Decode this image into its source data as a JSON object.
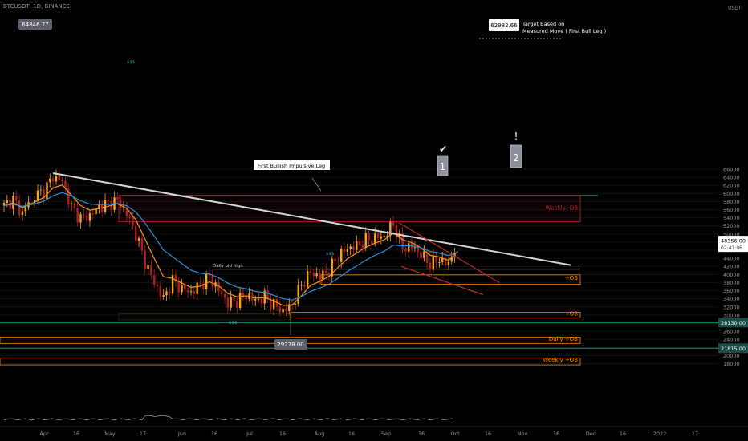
{
  "header": {
    "symbol": "BTCUSDT, 1D, BINANCE"
  },
  "colors": {
    "up": "#f5a623",
    "down": "#b51d1d",
    "ema_fast": "#f7931a",
    "ema_slow": "#2f8fd8",
    "trend": "#d6d6d6",
    "ob_red": "#c0262c",
    "ob_orange": "#ff8c00",
    "support": "#26a69a"
  },
  "chart_data": {
    "type": "candlestick",
    "title": "BTCUSDT, 1D, BINANCE",
    "currency": "USDT",
    "ylim": [
      17000,
      66500
    ],
    "y_ticks": [
      18000,
      20000,
      22000,
      24000,
      26000,
      28000,
      30000,
      32000,
      34000,
      36000,
      38000,
      40000,
      42000,
      44000,
      46000,
      48000,
      50000,
      52000,
      54000,
      56000,
      58000,
      60000,
      62000,
      64000,
      66000
    ],
    "x_ticks": [
      "Apr",
      "16",
      "May",
      "17",
      "Jun",
      "16",
      "Jul",
      "16",
      "Aug",
      "16",
      "Sep",
      "16",
      "Oct",
      "16",
      "Nov",
      "16",
      "Dec",
      "16",
      "2022",
      "17"
    ],
    "candles_close_path": [
      {
        "t": 0,
        "v": 57000
      },
      {
        "t": 3,
        "v": 58500
      },
      {
        "t": 6,
        "v": 55000
      },
      {
        "t": 10,
        "v": 59500
      },
      {
        "t": 13,
        "v": 60500
      },
      {
        "t": 16,
        "v": 64200
      },
      {
        "t": 19,
        "v": 63000
      },
      {
        "t": 22,
        "v": 56500
      },
      {
        "t": 25,
        "v": 53800
      },
      {
        "t": 28,
        "v": 54500
      },
      {
        "t": 31,
        "v": 56800
      },
      {
        "t": 34,
        "v": 57500
      },
      {
        "t": 37,
        "v": 58200
      },
      {
        "t": 40,
        "v": 55000
      },
      {
        "t": 43,
        "v": 50000
      },
      {
        "t": 46,
        "v": 43000
      },
      {
        "t": 49,
        "v": 38000
      },
      {
        "t": 52,
        "v": 34000
      },
      {
        "t": 55,
        "v": 38500
      },
      {
        "t": 58,
        "v": 36500
      },
      {
        "t": 61,
        "v": 35500
      },
      {
        "t": 64,
        "v": 37500
      },
      {
        "t": 67,
        "v": 39500
      },
      {
        "t": 70,
        "v": 36000
      },
      {
        "t": 73,
        "v": 33000
      },
      {
        "t": 76,
        "v": 33500
      },
      {
        "t": 79,
        "v": 35000
      },
      {
        "t": 82,
        "v": 33500
      },
      {
        "t": 85,
        "v": 34500
      },
      {
        "t": 88,
        "v": 32500
      },
      {
        "t": 91,
        "v": 31000
      },
      {
        "t": 94,
        "v": 32500
      },
      {
        "t": 97,
        "v": 37500
      },
      {
        "t": 100,
        "v": 40500
      },
      {
        "t": 103,
        "v": 39500
      },
      {
        "t": 106,
        "v": 41000
      },
      {
        "t": 109,
        "v": 44500
      },
      {
        "t": 112,
        "v": 46500
      },
      {
        "t": 115,
        "v": 47000
      },
      {
        "t": 118,
        "v": 48500
      },
      {
        "t": 121,
        "v": 49000
      },
      {
        "t": 124,
        "v": 49500
      },
      {
        "t": 127,
        "v": 52500
      },
      {
        "t": 130,
        "v": 46500
      },
      {
        "t": 133,
        "v": 47000
      },
      {
        "t": 136,
        "v": 45000
      },
      {
        "t": 139,
        "v": 42500
      },
      {
        "t": 142,
        "v": 43800
      },
      {
        "t": 145,
        "v": 42500
      },
      {
        "t": 148,
        "v": 48400
      }
    ],
    "current_price": "48356.00",
    "countdown": "02:41:06",
    "trendline": {
      "from": {
        "t": 16,
        "v": 65000
      },
      "to": {
        "t": 185,
        "v": 42300
      }
    },
    "annotations": {
      "high_label": "64846.77",
      "low_label": "29278.00",
      "target_value": "62982.66",
      "target_text_1": "Target Based on",
      "target_text_2": "Measured Move ( First Bull Leg )",
      "impulse_label": "First Bullish Impulsive Leg",
      "daily_old_high": "Daily old high",
      "weekly_ob_top": "Weekly -OB",
      "ob_plus_1": "+OB",
      "ob_plus_2": "+OB",
      "daily_ob": "Daily +OB",
      "weekly_ob_bottom": "Weekly +OB",
      "level_28130": "28130.00",
      "level_21815": "21815.00",
      "dollar_1": "$$$",
      "dollar_2": "$$$",
      "dollar_3": "$$$",
      "box_1": "1",
      "box_2": "2",
      "check": "✔",
      "exclaim": "!"
    }
  }
}
